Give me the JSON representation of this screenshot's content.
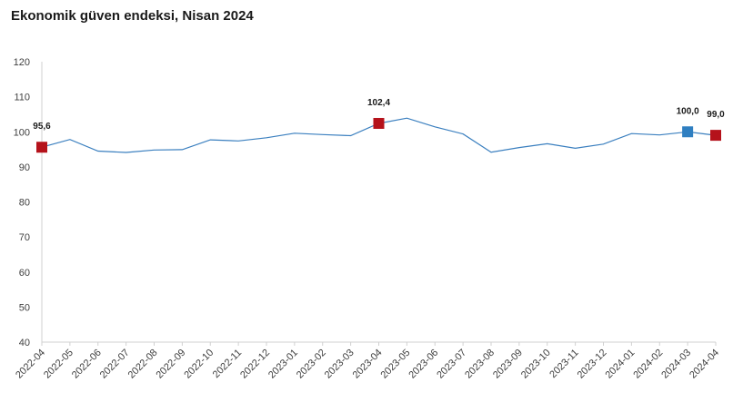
{
  "chart_data": {
    "type": "line",
    "title": "Ekonomik güven endeksi, Nisan 2024",
    "xlabel": "",
    "ylabel": "",
    "ylim": [
      40,
      120
    ],
    "yticks": [
      40,
      50,
      60,
      70,
      80,
      90,
      100,
      110,
      120
    ],
    "grid": false,
    "categories": [
      "2022-04",
      "2022-05",
      "2022-06",
      "2022-07",
      "2022-08",
      "2022-09",
      "2022-10",
      "2022-11",
      "2022-12",
      "2023-01",
      "2023-02",
      "2023-03",
      "2023-04",
      "2023-05",
      "2023-06",
      "2023-07",
      "2023-08",
      "2023-09",
      "2023-10",
      "2023-11",
      "2023-12",
      "2024-01",
      "2024-02",
      "2024-03",
      "2024-04"
    ],
    "series": [
      {
        "values": [
          95.6,
          97.8,
          94.5,
          94.1,
          94.8,
          94.9,
          97.7,
          97.4,
          98.3,
          99.6,
          99.2,
          98.9,
          102.4,
          103.9,
          101.4,
          99.4,
          94.2,
          95.5,
          96.6,
          95.3,
          96.5,
          99.5,
          99.1,
          100.0,
          99.0
        ],
        "color": "#3a7fbf"
      }
    ],
    "markers": [
      {
        "index": 0,
        "label": "95,6",
        "color": "#b5121b"
      },
      {
        "index": 12,
        "label": "102,4",
        "color": "#b5121b"
      },
      {
        "index": 23,
        "label": "100,0",
        "color": "#2f7fc1"
      },
      {
        "index": 24,
        "label": "99,0",
        "color": "#b5121b"
      }
    ],
    "axis_color": "#d0d0d0"
  }
}
